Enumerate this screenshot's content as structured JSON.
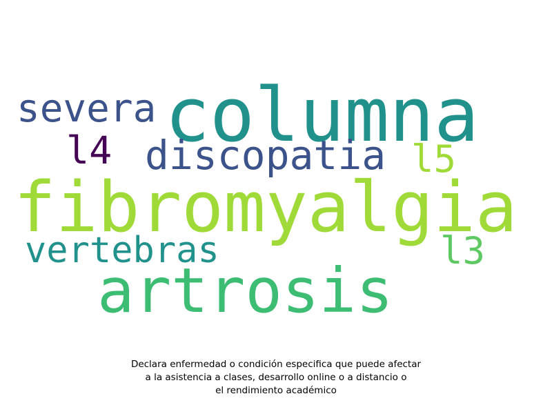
{
  "wordcloud": {
    "words": [
      {
        "id": "columna",
        "text": "columna",
        "color": "#21918c"
      },
      {
        "id": "severa",
        "text": "severa",
        "color": "#3b528b"
      },
      {
        "id": "l4",
        "text": "l4",
        "color": "#440154"
      },
      {
        "id": "discopatia",
        "text": "discopatia",
        "color": "#3b528b"
      },
      {
        "id": "l5",
        "text": "l5",
        "color": "#a0da39"
      },
      {
        "id": "fibromyalgia",
        "text": "fibromyalgia",
        "color": "#a0da39"
      },
      {
        "id": "vertebras",
        "text": "vertebras",
        "color": "#21918c"
      },
      {
        "id": "l3",
        "text": "l3",
        "color": "#5ec962"
      },
      {
        "id": "artrosis",
        "text": "artrosis",
        "color": "#3dbc74"
      }
    ]
  },
  "caption": {
    "line1": "Declara enfermedad o condición especifica que puede afectar",
    "line2": "a la asistencia a clases, desarrollo online o a distancio o",
    "line3": "el rendimiento académico"
  }
}
